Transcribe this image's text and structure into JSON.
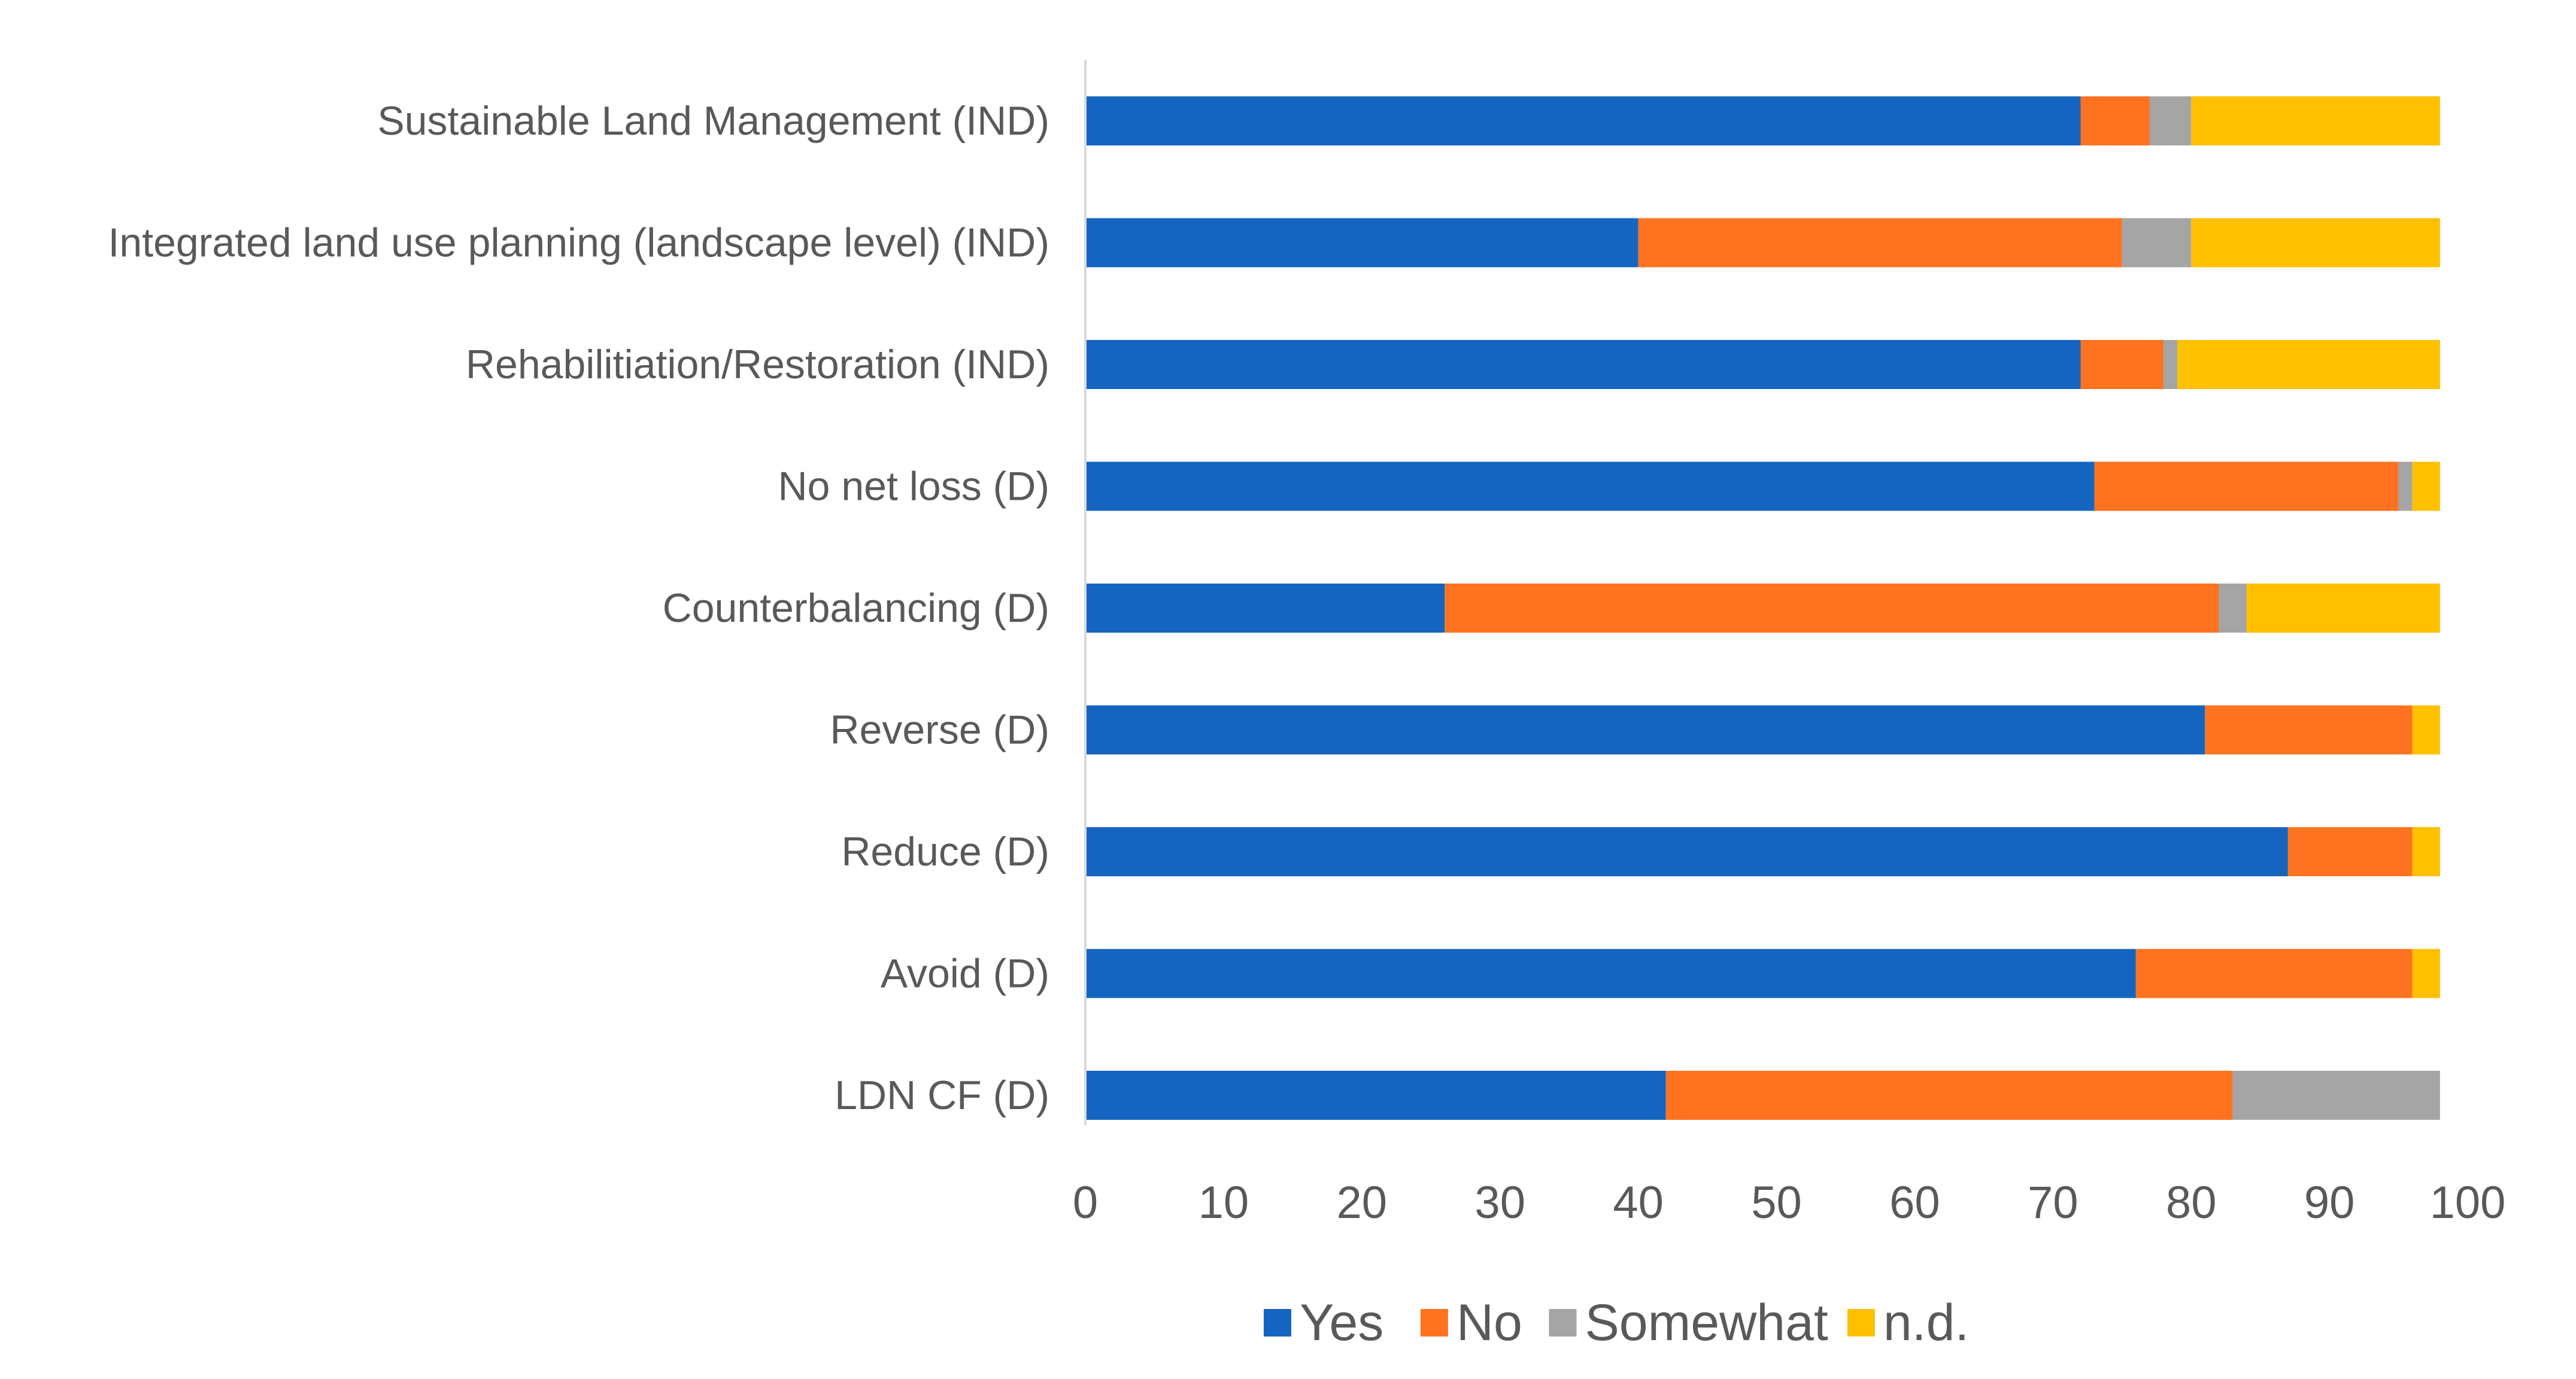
{
  "chart_data": {
    "type": "bar",
    "orientation": "horizontal",
    "stacked": true,
    "title": "",
    "xlabel": "",
    "ylabel": "",
    "xlim": [
      0,
      100
    ],
    "x_ticks": [
      0,
      10,
      20,
      30,
      40,
      50,
      60,
      70,
      80,
      90,
      100
    ],
    "grid": false,
    "legend_position": "bottom",
    "categories": [
      "Sustainable Land Management (IND)",
      "Integrated land use planning (landscape level) (IND)",
      "Rehabilitiation/Restoration (IND)",
      "No net loss (D)",
      "Counterbalancing (D)",
      "Reverse (D)",
      "Reduce (D)",
      "Avoid (D)",
      "LDN CF (D)"
    ],
    "series": [
      {
        "name": "Yes",
        "color": "#1565C0",
        "values": [
          72,
          40,
          72,
          73,
          26,
          81,
          87,
          76,
          42
        ]
      },
      {
        "name": "No",
        "color": "#FF7320",
        "values": [
          5,
          35,
          6,
          22,
          56,
          15,
          9,
          20,
          41
        ]
      },
      {
        "name": "Somewhat",
        "color": "#A5A5A5",
        "values": [
          3,
          5,
          1,
          1,
          2,
          0,
          0,
          0,
          15
        ]
      },
      {
        "name": "n.d.",
        "color": "#FFC000",
        "values": [
          18,
          18,
          19,
          2,
          14,
          2,
          2,
          2,
          0
        ]
      }
    ]
  }
}
